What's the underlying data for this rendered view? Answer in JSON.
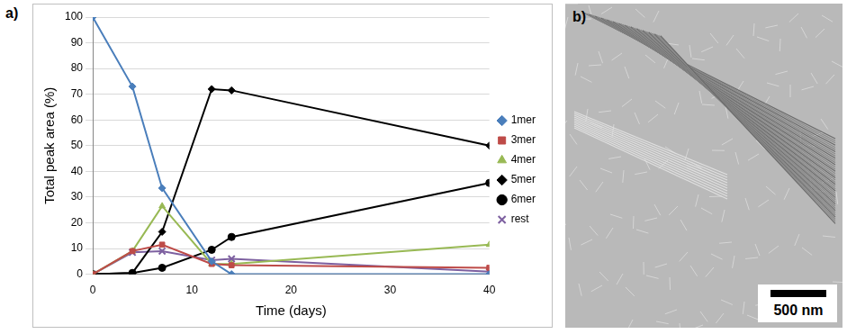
{
  "chart_data": {
    "type": "line",
    "x_label": "Time (days)",
    "y_label": "Total peak area (%)",
    "x": [
      0,
      4,
      7,
      12,
      14,
      40
    ],
    "series": [
      {
        "name": "1mer",
        "color": "#4a7ebb",
        "marker": "diamond",
        "line_style": "solid",
        "values": [
          100,
          73,
          33.5,
          5,
          0,
          0
        ]
      },
      {
        "name": "3mer",
        "color": "#be4b48",
        "marker": "square",
        "line_style": "solid",
        "values": [
          0,
          9,
          11.5,
          4,
          3.5,
          2.5
        ]
      },
      {
        "name": "4mer",
        "color": "#98b954",
        "marker": "triangle",
        "line_style": "solid",
        "values": [
          0,
          9,
          26.5,
          4,
          4,
          11.5
        ]
      },
      {
        "name": "5mer",
        "color": "#000000",
        "marker": "diamond",
        "line_style": "solid",
        "values": [
          0,
          0.5,
          16.5,
          72,
          71.5,
          50
        ]
      },
      {
        "name": "6mer",
        "color": "#000000",
        "marker": "circle",
        "line_style": "solid",
        "values": [
          0,
          0.5,
          2.5,
          9.5,
          14.5,
          35.5
        ]
      },
      {
        "name": "rest",
        "color": "#7d60a0",
        "marker": "x",
        "line_style": "solid",
        "values": [
          0,
          8.5,
          9,
          5.5,
          6,
          1
        ]
      }
    ],
    "xlim": [
      0,
      40
    ],
    "xticks": [
      0,
      10,
      20,
      30,
      40
    ],
    "ylim": [
      0,
      100
    ],
    "yticks": [
      0,
      10,
      20,
      30,
      40,
      50,
      60,
      70,
      80,
      90,
      100
    ],
    "grid": true,
    "legend": "right"
  },
  "panel_labels": [
    "a)",
    "b)"
  ],
  "micrograph": {
    "scale_bar": "500 nm"
  }
}
